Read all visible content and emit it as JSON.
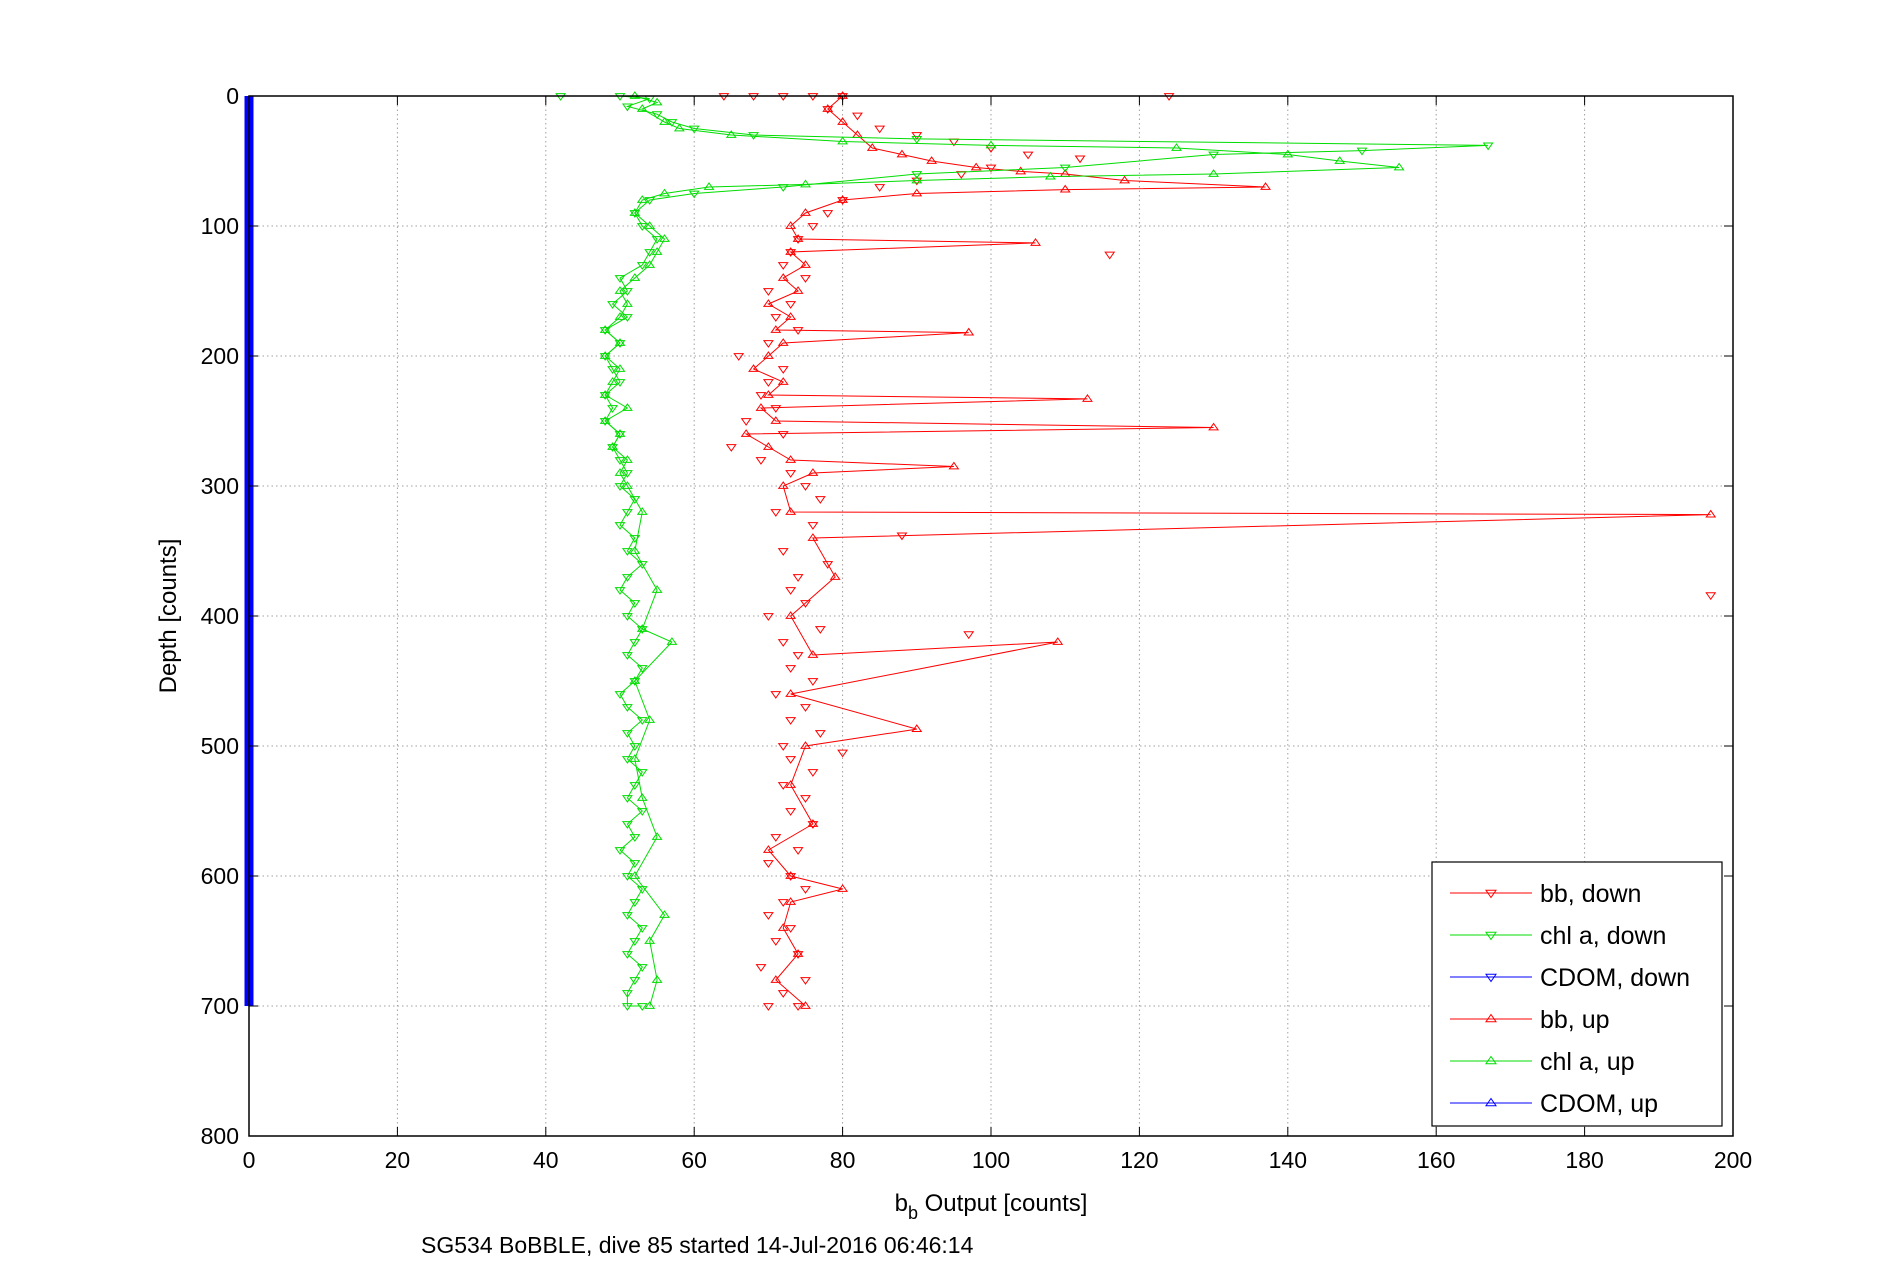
{
  "chart_data": {
    "type": "scatter",
    "title": "",
    "caption": "SG534 BoBBLE, dive 85 started 14-Jul-2016 06:46:14",
    "xlabel": {
      "base": "b",
      "sub": "b",
      "rest": " Output [counts]"
    },
    "ylabel": "Depth [counts]",
    "xlim": [
      0,
      200
    ],
    "ylim": [
      0,
      800
    ],
    "y_reversed": true,
    "grid": true,
    "legend_position": "bottom-right",
    "x_ticks": [
      0,
      20,
      40,
      60,
      80,
      100,
      120,
      140,
      160,
      180,
      200
    ],
    "y_ticks": [
      0,
      100,
      200,
      300,
      400,
      500,
      600,
      700,
      800
    ],
    "series": [
      {
        "name": "bb, down",
        "color": "#ff0000",
        "marker": "triangle-down",
        "line": false,
        "points": [
          [
            64,
            0
          ],
          [
            68,
            0
          ],
          [
            72,
            0
          ],
          [
            76,
            0
          ],
          [
            80,
            0
          ],
          [
            124,
            0
          ],
          [
            78,
            10
          ],
          [
            82,
            15
          ],
          [
            85,
            25
          ],
          [
            90,
            30
          ],
          [
            95,
            35
          ],
          [
            100,
            40
          ],
          [
            105,
            45
          ],
          [
            112,
            48
          ],
          [
            100,
            55
          ],
          [
            96,
            60
          ],
          [
            90,
            65
          ],
          [
            85,
            70
          ],
          [
            80,
            80
          ],
          [
            78,
            90
          ],
          [
            76,
            100
          ],
          [
            74,
            110
          ],
          [
            73,
            120
          ],
          [
            116,
            122
          ],
          [
            72,
            130
          ],
          [
            75,
            140
          ],
          [
            70,
            150
          ],
          [
            73,
            160
          ],
          [
            71,
            170
          ],
          [
            74,
            180
          ],
          [
            70,
            190
          ],
          [
            66,
            200
          ],
          [
            72,
            210
          ],
          [
            70,
            220
          ],
          [
            69,
            230
          ],
          [
            71,
            240
          ],
          [
            67,
            250
          ],
          [
            72,
            260
          ],
          [
            65,
            270
          ],
          [
            69,
            280
          ],
          [
            73,
            290
          ],
          [
            75,
            300
          ],
          [
            77,
            310
          ],
          [
            71,
            320
          ],
          [
            76,
            330
          ],
          [
            88,
            338
          ],
          [
            72,
            350
          ],
          [
            78,
            360
          ],
          [
            74,
            370
          ],
          [
            73,
            380
          ],
          [
            197,
            384
          ],
          [
            75,
            390
          ],
          [
            70,
            400
          ],
          [
            77,
            410
          ],
          [
            72,
            420
          ],
          [
            97,
            414
          ],
          [
            74,
            430
          ],
          [
            73,
            440
          ],
          [
            76,
            450
          ],
          [
            71,
            460
          ],
          [
            75,
            470
          ],
          [
            73,
            480
          ],
          [
            77,
            490
          ],
          [
            72,
            500
          ],
          [
            80,
            505
          ],
          [
            73,
            510
          ],
          [
            76,
            520
          ],
          [
            72,
            530
          ],
          [
            75,
            540
          ],
          [
            73,
            550
          ],
          [
            76,
            560
          ],
          [
            71,
            570
          ],
          [
            74,
            580
          ],
          [
            70,
            590
          ],
          [
            73,
            600
          ],
          [
            75,
            610
          ],
          [
            72,
            620
          ],
          [
            70,
            630
          ],
          [
            73,
            640
          ],
          [
            71,
            650
          ],
          [
            74,
            660
          ],
          [
            69,
            670
          ],
          [
            75,
            680
          ],
          [
            72,
            690
          ],
          [
            70,
            700
          ],
          [
            74,
            700
          ]
        ]
      },
      {
        "name": "chl a, down",
        "color": "#00dd00",
        "marker": "triangle-down",
        "line": true,
        "points": [
          [
            42,
            0
          ],
          [
            50,
            0
          ],
          [
            54,
            2
          ],
          [
            51,
            8
          ],
          [
            55,
            14
          ],
          [
            57,
            20
          ],
          [
            60,
            25
          ],
          [
            68,
            30
          ],
          [
            90,
            33
          ],
          [
            167,
            38
          ],
          [
            150,
            42
          ],
          [
            130,
            45
          ],
          [
            110,
            55
          ],
          [
            90,
            60
          ],
          [
            72,
            70
          ],
          [
            60,
            75
          ],
          [
            54,
            80
          ],
          [
            52,
            90
          ],
          [
            53,
            100
          ],
          [
            55,
            110
          ],
          [
            54,
            120
          ],
          [
            53,
            130
          ],
          [
            50,
            140
          ],
          [
            51,
            150
          ],
          [
            49,
            160
          ],
          [
            51,
            170
          ],
          [
            48,
            180
          ],
          [
            50,
            190
          ],
          [
            48,
            200
          ],
          [
            49,
            210
          ],
          [
            50,
            220
          ],
          [
            48,
            230
          ],
          [
            49,
            240
          ],
          [
            48,
            250
          ],
          [
            50,
            260
          ],
          [
            49,
            270
          ],
          [
            50,
            280
          ],
          [
            51,
            290
          ],
          [
            50,
            300
          ],
          [
            52,
            310
          ],
          [
            51,
            320
          ],
          [
            50,
            330
          ],
          [
            52,
            340
          ],
          [
            51,
            350
          ],
          [
            53,
            360
          ],
          [
            51,
            370
          ],
          [
            50,
            380
          ],
          [
            52,
            390
          ],
          [
            51,
            400
          ],
          [
            53,
            410
          ],
          [
            52,
            420
          ],
          [
            51,
            430
          ],
          [
            53,
            440
          ],
          [
            52,
            450
          ],
          [
            50,
            460
          ],
          [
            51,
            470
          ],
          [
            53,
            480
          ],
          [
            51,
            490
          ],
          [
            52,
            500
          ],
          [
            51,
            510
          ],
          [
            53,
            520
          ],
          [
            52,
            530
          ],
          [
            51,
            540
          ],
          [
            53,
            550
          ],
          [
            51,
            560
          ],
          [
            52,
            570
          ],
          [
            50,
            580
          ],
          [
            52,
            590
          ],
          [
            51,
            600
          ],
          [
            53,
            610
          ],
          [
            52,
            620
          ],
          [
            51,
            630
          ],
          [
            53,
            640
          ],
          [
            52,
            650
          ],
          [
            51,
            660
          ],
          [
            53,
            670
          ],
          [
            52,
            680
          ],
          [
            51,
            690
          ],
          [
            51,
            700
          ],
          [
            53,
            700
          ]
        ]
      },
      {
        "name": "CDOM, down",
        "color": "#0000ff",
        "marker": "triangle-down",
        "line": true,
        "points": [
          [
            0,
            0
          ],
          [
            0,
            100
          ],
          [
            0,
            200
          ],
          [
            0,
            300
          ],
          [
            0,
            400
          ],
          [
            0,
            500
          ],
          [
            0,
            600
          ],
          [
            0,
            700
          ]
        ]
      },
      {
        "name": "bb, up",
        "color": "#ff0000",
        "marker": "triangle-up",
        "line": true,
        "points": [
          [
            80,
            0
          ],
          [
            78,
            10
          ],
          [
            80,
            20
          ],
          [
            82,
            30
          ],
          [
            84,
            40
          ],
          [
            88,
            45
          ],
          [
            92,
            50
          ],
          [
            98,
            55
          ],
          [
            104,
            58
          ],
          [
            110,
            60
          ],
          [
            118,
            65
          ],
          [
            137,
            70
          ],
          [
            110,
            72
          ],
          [
            90,
            75
          ],
          [
            80,
            80
          ],
          [
            75,
            90
          ],
          [
            73,
            100
          ],
          [
            74,
            110
          ],
          [
            106,
            113
          ],
          [
            73,
            120
          ],
          [
            75,
            130
          ],
          [
            72,
            140
          ],
          [
            74,
            150
          ],
          [
            70,
            160
          ],
          [
            73,
            170
          ],
          [
            71,
            180
          ],
          [
            97,
            182
          ],
          [
            72,
            190
          ],
          [
            70,
            200
          ],
          [
            68,
            210
          ],
          [
            72,
            220
          ],
          [
            70,
            230
          ],
          [
            113,
            233
          ],
          [
            69,
            240
          ],
          [
            71,
            250
          ],
          [
            130,
            255
          ],
          [
            67,
            260
          ],
          [
            70,
            270
          ],
          [
            73,
            280
          ],
          [
            95,
            285
          ],
          [
            76,
            290
          ],
          [
            72,
            300
          ],
          [
            73,
            320
          ],
          [
            197,
            322
          ],
          [
            76,
            340
          ],
          [
            79,
            370
          ],
          [
            73,
            400
          ],
          [
            76,
            430
          ],
          [
            109,
            420
          ],
          [
            73,
            460
          ],
          [
            90,
            487
          ],
          [
            75,
            500
          ],
          [
            73,
            530
          ],
          [
            76,
            560
          ],
          [
            70,
            580
          ],
          [
            73,
            600
          ],
          [
            80,
            610
          ],
          [
            73,
            620
          ],
          [
            72,
            640
          ],
          [
            74,
            660
          ],
          [
            71,
            680
          ],
          [
            75,
            700
          ]
        ]
      },
      {
        "name": "chl a, up",
        "color": "#00dd00",
        "marker": "triangle-up",
        "line": true,
        "points": [
          [
            52,
            0
          ],
          [
            55,
            5
          ],
          [
            53,
            10
          ],
          [
            56,
            20
          ],
          [
            58,
            25
          ],
          [
            65,
            30
          ],
          [
            80,
            35
          ],
          [
            100,
            38
          ],
          [
            125,
            40
          ],
          [
            140,
            45
          ],
          [
            147,
            50
          ],
          [
            155,
            55
          ],
          [
            130,
            60
          ],
          [
            108,
            62
          ],
          [
            90,
            65
          ],
          [
            75,
            68
          ],
          [
            62,
            70
          ],
          [
            56,
            75
          ],
          [
            53,
            80
          ],
          [
            52,
            90
          ],
          [
            54,
            100
          ],
          [
            56,
            110
          ],
          [
            55,
            120
          ],
          [
            54,
            130
          ],
          [
            52,
            140
          ],
          [
            50,
            150
          ],
          [
            51,
            160
          ],
          [
            50,
            170
          ],
          [
            48,
            180
          ],
          [
            50,
            190
          ],
          [
            48,
            200
          ],
          [
            50,
            210
          ],
          [
            49,
            220
          ],
          [
            48,
            230
          ],
          [
            51,
            240
          ],
          [
            48,
            250
          ],
          [
            50,
            260
          ],
          [
            49,
            270
          ],
          [
            51,
            280
          ],
          [
            50,
            290
          ],
          [
            51,
            300
          ],
          [
            53,
            320
          ],
          [
            52,
            350
          ],
          [
            55,
            380
          ],
          [
            53,
            410
          ],
          [
            57,
            420
          ],
          [
            52,
            450
          ],
          [
            54,
            480
          ],
          [
            52,
            510
          ],
          [
            53,
            540
          ],
          [
            55,
            570
          ],
          [
            52,
            600
          ],
          [
            56,
            630
          ],
          [
            54,
            650
          ],
          [
            55,
            680
          ],
          [
            54,
            700
          ]
        ]
      },
      {
        "name": "CDOM, up",
        "color": "#0000ff",
        "marker": "triangle-up",
        "line": true,
        "points": [
          [
            0,
            0
          ],
          [
            0,
            100
          ],
          [
            0,
            200
          ],
          [
            0,
            300
          ],
          [
            0,
            400
          ],
          [
            0,
            500
          ],
          [
            0,
            600
          ],
          [
            0,
            700
          ]
        ]
      }
    ]
  }
}
